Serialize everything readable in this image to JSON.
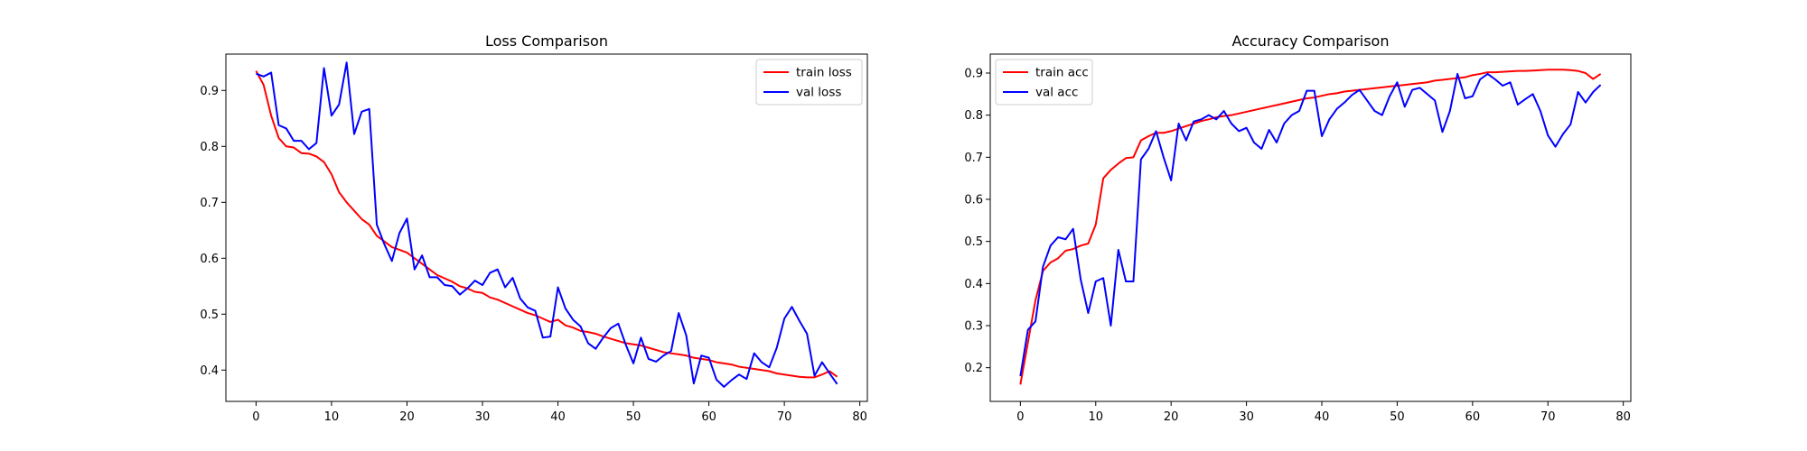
{
  "chart_data": [
    {
      "type": "line",
      "title": "Loss Comparison",
      "xlabel": "",
      "ylabel": "",
      "xlim": [
        -4,
        81
      ],
      "ylim": [
        0.344,
        0.965
      ],
      "xticks": [
        0,
        10,
        20,
        30,
        40,
        50,
        60,
        70,
        80
      ],
      "yticks": [
        0.4,
        0.5,
        0.6,
        0.7,
        0.8,
        0.9
      ],
      "x": [
        0,
        1,
        2,
        3,
        4,
        5,
        6,
        7,
        8,
        9,
        10,
        11,
        12,
        13,
        14,
        15,
        16,
        17,
        18,
        19,
        20,
        21,
        22,
        23,
        24,
        25,
        26,
        27,
        28,
        29,
        30,
        31,
        32,
        33,
        34,
        35,
        36,
        37,
        38,
        39,
        40,
        41,
        42,
        43,
        44,
        45,
        46,
        47,
        48,
        49,
        50,
        51,
        52,
        53,
        54,
        55,
        56,
        57,
        58,
        59,
        60,
        61,
        62,
        63,
        64,
        65,
        66,
        67,
        68,
        69,
        70,
        71,
        72,
        73,
        74,
        75,
        76,
        77
      ],
      "legend": {
        "location": "top-right"
      },
      "grid": false,
      "series": [
        {
          "name": "train loss",
          "color": "#ff0000",
          "values": [
            0.935,
            0.91,
            0.855,
            0.815,
            0.8,
            0.798,
            0.788,
            0.787,
            0.782,
            0.772,
            0.75,
            0.718,
            0.7,
            0.685,
            0.67,
            0.66,
            0.64,
            0.63,
            0.62,
            0.615,
            0.61,
            0.6,
            0.59,
            0.58,
            0.57,
            0.564,
            0.558,
            0.55,
            0.546,
            0.54,
            0.538,
            0.53,
            0.526,
            0.52,
            0.514,
            0.508,
            0.502,
            0.498,
            0.492,
            0.486,
            0.49,
            0.48,
            0.476,
            0.47,
            0.468,
            0.465,
            0.46,
            0.456,
            0.452,
            0.448,
            0.446,
            0.444,
            0.44,
            0.436,
            0.432,
            0.43,
            0.428,
            0.426,
            0.422,
            0.42,
            0.418,
            0.414,
            0.412,
            0.41,
            0.406,
            0.404,
            0.402,
            0.4,
            0.398,
            0.394,
            0.392,
            0.39,
            0.388,
            0.387,
            0.387,
            0.392,
            0.398,
            0.388
          ]
        },
        {
          "name": "val loss",
          "color": "#0000ff",
          "values": [
            0.93,
            0.925,
            0.932,
            0.838,
            0.832,
            0.81,
            0.81,
            0.795,
            0.806,
            0.94,
            0.855,
            0.875,
            0.95,
            0.822,
            0.862,
            0.867,
            0.66,
            0.625,
            0.595,
            0.645,
            0.671,
            0.58,
            0.605,
            0.566,
            0.566,
            0.552,
            0.55,
            0.535,
            0.546,
            0.56,
            0.552,
            0.574,
            0.58,
            0.548,
            0.565,
            0.528,
            0.512,
            0.506,
            0.458,
            0.46,
            0.548,
            0.51,
            0.49,
            0.478,
            0.448,
            0.438,
            0.458,
            0.475,
            0.483,
            0.445,
            0.412,
            0.458,
            0.42,
            0.415,
            0.426,
            0.434,
            0.502,
            0.462,
            0.376,
            0.426,
            0.422,
            0.383,
            0.37,
            0.382,
            0.392,
            0.384,
            0.43,
            0.414,
            0.405,
            0.44,
            0.492,
            0.513,
            0.488,
            0.465,
            0.39,
            0.414,
            0.394,
            0.375
          ]
        }
      ]
    },
    {
      "type": "line",
      "title": "Accuracy Comparison",
      "xlabel": "",
      "ylabel": "",
      "xlim": [
        -4,
        81
      ],
      "ylim": [
        0.12,
        0.945
      ],
      "xticks": [
        0,
        10,
        20,
        30,
        40,
        50,
        60,
        70,
        80
      ],
      "yticks": [
        0.2,
        0.3,
        0.4,
        0.5,
        0.6,
        0.7,
        0.8,
        0.9
      ],
      "x": [
        0,
        1,
        2,
        3,
        4,
        5,
        6,
        7,
        8,
        9,
        10,
        11,
        12,
        13,
        14,
        15,
        16,
        17,
        18,
        19,
        20,
        21,
        22,
        23,
        24,
        25,
        26,
        27,
        28,
        29,
        30,
        31,
        32,
        33,
        34,
        35,
        36,
        37,
        38,
        39,
        40,
        41,
        42,
        43,
        44,
        45,
        46,
        47,
        48,
        49,
        50,
        51,
        52,
        53,
        54,
        55,
        56,
        57,
        58,
        59,
        60,
        61,
        62,
        63,
        64,
        65,
        66,
        67,
        68,
        69,
        70,
        71,
        72,
        73,
        74,
        75,
        76,
        77
      ],
      "legend": {
        "location": "top-left"
      },
      "grid": false,
      "series": [
        {
          "name": "train acc",
          "color": "#ff0000",
          "values": [
            0.16,
            0.26,
            0.36,
            0.43,
            0.45,
            0.46,
            0.478,
            0.482,
            0.49,
            0.495,
            0.54,
            0.65,
            0.67,
            0.685,
            0.698,
            0.7,
            0.74,
            0.75,
            0.758,
            0.758,
            0.762,
            0.768,
            0.774,
            0.78,
            0.786,
            0.79,
            0.795,
            0.798,
            0.8,
            0.804,
            0.808,
            0.812,
            0.816,
            0.82,
            0.824,
            0.828,
            0.832,
            0.836,
            0.84,
            0.842,
            0.846,
            0.85,
            0.852,
            0.856,
            0.858,
            0.86,
            0.862,
            0.864,
            0.866,
            0.868,
            0.87,
            0.872,
            0.874,
            0.876,
            0.878,
            0.882,
            0.884,
            0.886,
            0.888,
            0.89,
            0.895,
            0.898,
            0.902,
            0.902,
            0.903,
            0.904,
            0.905,
            0.905,
            0.906,
            0.907,
            0.908,
            0.908,
            0.908,
            0.907,
            0.905,
            0.9,
            0.886,
            0.898
          ]
        },
        {
          "name": "val acc",
          "color": "#0000ff",
          "values": [
            0.18,
            0.29,
            0.31,
            0.44,
            0.49,
            0.51,
            0.505,
            0.53,
            0.41,
            0.33,
            0.405,
            0.413,
            0.3,
            0.48,
            0.405,
            0.405,
            0.695,
            0.72,
            0.762,
            0.7,
            0.645,
            0.78,
            0.74,
            0.785,
            0.79,
            0.8,
            0.79,
            0.81,
            0.78,
            0.762,
            0.77,
            0.735,
            0.72,
            0.765,
            0.735,
            0.78,
            0.8,
            0.81,
            0.858,
            0.858,
            0.75,
            0.79,
            0.815,
            0.83,
            0.848,
            0.86,
            0.835,
            0.81,
            0.8,
            0.845,
            0.878,
            0.82,
            0.86,
            0.865,
            0.85,
            0.835,
            0.76,
            0.81,
            0.898,
            0.84,
            0.845,
            0.885,
            0.898,
            0.885,
            0.87,
            0.878,
            0.825,
            0.838,
            0.85,
            0.81,
            0.752,
            0.725,
            0.755,
            0.778,
            0.855,
            0.83,
            0.855,
            0.872
          ]
        }
      ]
    }
  ]
}
